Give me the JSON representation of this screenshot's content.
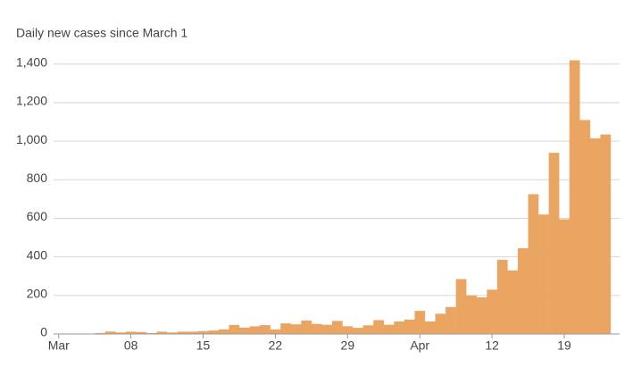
{
  "chart_data": {
    "type": "bar",
    "title": "Daily new cases since March 1",
    "categories": [
      "Mar",
      null,
      null,
      null,
      null,
      null,
      null,
      "08",
      null,
      null,
      null,
      null,
      null,
      null,
      "15",
      null,
      null,
      null,
      null,
      null,
      null,
      "22",
      null,
      null,
      null,
      null,
      null,
      null,
      "29",
      null,
      null,
      null,
      null,
      null,
      null,
      "Apr",
      null,
      null,
      null,
      null,
      null,
      null,
      "12",
      null,
      null,
      null,
      null,
      null,
      null,
      "19",
      null,
      null,
      null,
      null
    ],
    "values": [
      1,
      0,
      0,
      1,
      5,
      13,
      8,
      12,
      10,
      5,
      12,
      8,
      12,
      12,
      15,
      18,
      24,
      47,
      33,
      40,
      46,
      24,
      55,
      50,
      70,
      52,
      48,
      68,
      40,
      32,
      45,
      72,
      48,
      65,
      75,
      120,
      65,
      105,
      140,
      285,
      200,
      190,
      230,
      385,
      330,
      445,
      725,
      620,
      940,
      595,
      1420,
      1110,
      1015,
      1035
    ],
    "color": "#e9a05a",
    "ylim": [
      0,
      1450
    ],
    "yticks": [
      0,
      200,
      400,
      600,
      800,
      {
        "value": 1000,
        "label": "1,000"
      },
      {
        "value": 1200,
        "label": "1,200"
      },
      {
        "value": 1400,
        "label": "1,400"
      }
    ],
    "grid": true
  }
}
